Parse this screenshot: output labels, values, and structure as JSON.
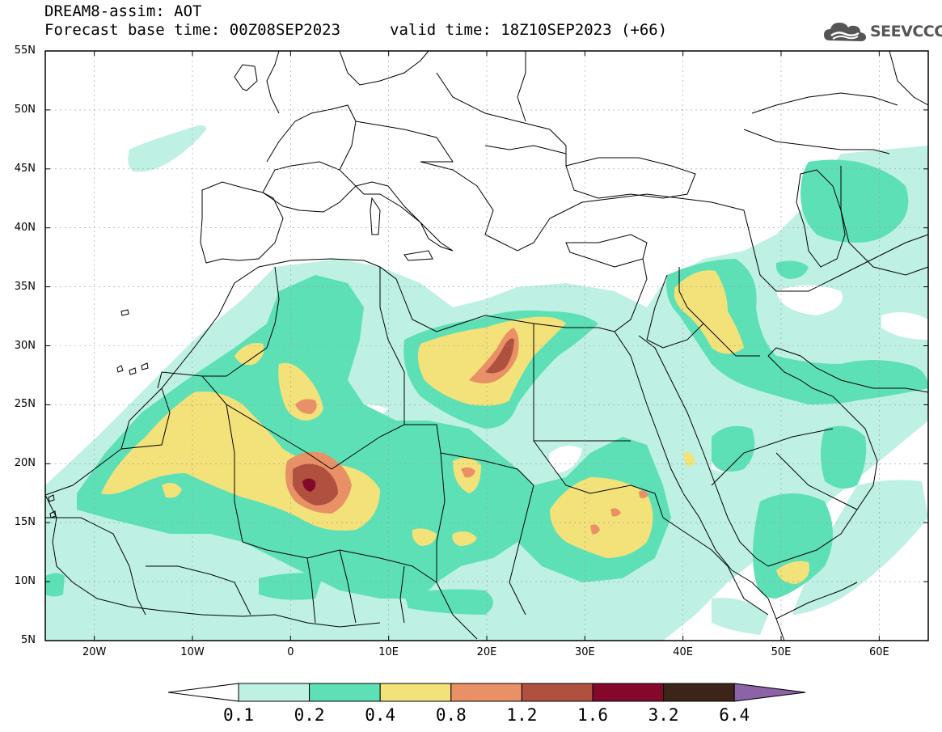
{
  "header": {
    "title": "DREAM8-assim: AOT",
    "base_time": "Forecast base time: 00Z08SEP2023",
    "valid_time": "valid time: 18Z10SEP2023 (+66)"
  },
  "logo": {
    "text": "SEEVCCC",
    "icon": "cloud-icon"
  },
  "map": {
    "lon_range": [
      -25,
      65
    ],
    "lat_range": [
      5,
      55
    ],
    "lat_ticks": [
      "55N",
      "50N",
      "45N",
      "40N",
      "35N",
      "30N",
      "25N",
      "20N",
      "15N",
      "10N",
      "5N"
    ],
    "lon_ticks": [
      "20W",
      "10W",
      "0",
      "10E",
      "20E",
      "30E",
      "40E",
      "50E",
      "60E"
    ]
  },
  "colorbar": {
    "levels": [
      "0.1",
      "0.2",
      "0.4",
      "0.8",
      "1.2",
      "1.6",
      "3.2",
      "6.4"
    ],
    "colors": [
      "#ffffff",
      "#bff0e4",
      "#5ee0b6",
      "#f3e27a",
      "#e99066",
      "#b0513f",
      "#83082c",
      "#3c2418",
      "#8c63a6"
    ]
  }
}
